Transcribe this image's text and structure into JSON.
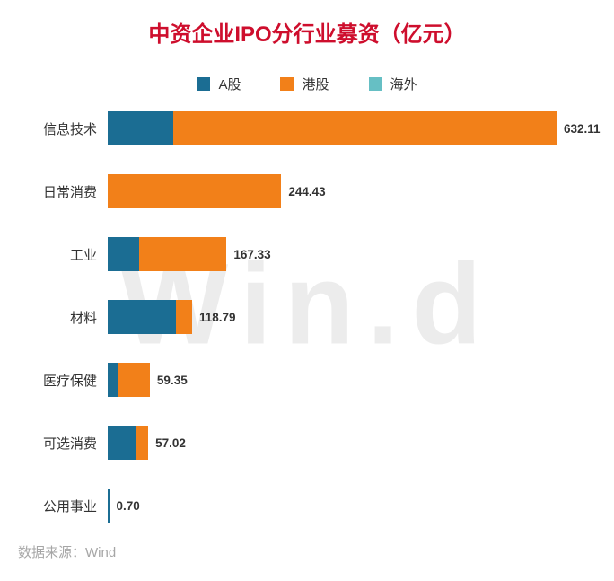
{
  "title": "中资企业IPO分行业募资（亿元）",
  "title_color": "#CE0E2D",
  "watermark": "Win.d",
  "legend": [
    {
      "label": "A股",
      "color": "#1B6D93"
    },
    {
      "label": "港股",
      "color": "#F28019"
    },
    {
      "label": "海外",
      "color": "#66BFC4"
    }
  ],
  "footer": {
    "prefix": "数据来源：",
    "source": "Wind"
  },
  "chart_data": {
    "type": "bar",
    "orientation": "horizontal",
    "stacked": true,
    "title": "中资企业IPO分行业募资（亿元）",
    "legend_position": "top",
    "grid": false,
    "categories": [
      "信息技术",
      "日常消费",
      "工业",
      "材料",
      "医疗保健",
      "可选消费",
      "公用事业"
    ],
    "totals": [
      632.11,
      244.43,
      167.33,
      118.79,
      59.35,
      57.02,
      0.7
    ],
    "total_labels": [
      "632.11",
      "244.43",
      "167.33",
      "118.79",
      "59.35",
      "57.02",
      "0.70"
    ],
    "series": [
      {
        "name": "A股",
        "color": "#1B6D93",
        "values": [
          92.0,
          0,
          44.0,
          96.0,
          14.0,
          39.0,
          0.7
        ]
      },
      {
        "name": "港股",
        "color": "#F28019",
        "values": [
          540.11,
          244.43,
          123.33,
          22.79,
          45.35,
          18.02,
          0
        ]
      },
      {
        "name": "海外",
        "color": "#66BFC4",
        "values": [
          0,
          0,
          0,
          0,
          0,
          0,
          0
        ]
      }
    ],
    "xlim": [
      0,
      650
    ]
  }
}
